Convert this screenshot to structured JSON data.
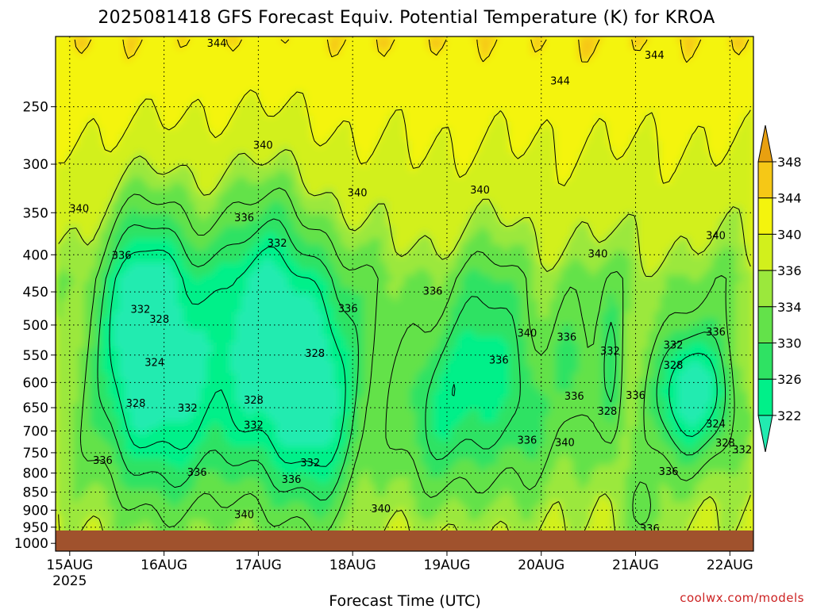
{
  "chart_data": {
    "type": "heatmap",
    "title": "2025081418 GFS Forecast Equiv. Potential Temperature (K) for KROA",
    "xlabel": "Forecast Time (UTC)",
    "ylabel": "",
    "x_ticks": [
      "15AUG",
      "16AUG",
      "17AUG",
      "18AUG",
      "19AUG",
      "20AUG",
      "21AUG",
      "22AUG"
    ],
    "x_tick_year": "2025",
    "x_range_days": [
      -0.15,
      7.25
    ],
    "y_ticks": [
      250,
      300,
      350,
      400,
      450,
      500,
      550,
      600,
      650,
      700,
      750,
      800,
      850,
      900,
      950,
      1000
    ],
    "y_range_hpa": [
      200,
      1025
    ],
    "ground_level_hpa": 960,
    "colorbar": {
      "levels": [
        322,
        326,
        330,
        334,
        336,
        340,
        344,
        348
      ],
      "colors": [
        "#00f089",
        "#2fe263",
        "#63e24a",
        "#9be83c",
        "#d2f01c",
        "#f4f40d",
        "#f6c816",
        "#e8a010"
      ],
      "over_color": "#e8a010",
      "under_color": "#22ebb0"
    },
    "contour_labels": [
      {
        "t": 1.56,
        "p": 204,
        "v": "344"
      },
      {
        "t": 6.2,
        "p": 212,
        "v": "344"
      },
      {
        "t": 5.2,
        "p": 230,
        "v": "344"
      },
      {
        "t": 2.05,
        "p": 282,
        "v": "340"
      },
      {
        "t": 3.05,
        "p": 328,
        "v": "340"
      },
      {
        "t": 4.35,
        "p": 325,
        "v": "340"
      },
      {
        "t": 0.1,
        "p": 345,
        "v": "340"
      },
      {
        "t": 5.6,
        "p": 398,
        "v": "340"
      },
      {
        "t": 6.85,
        "p": 376,
        "v": "340"
      },
      {
        "t": 1.85,
        "p": 355,
        "v": "336"
      },
      {
        "t": 0.55,
        "p": 400,
        "v": "336"
      },
      {
        "t": 2.2,
        "p": 385,
        "v": "332"
      },
      {
        "t": 0.75,
        "p": 475,
        "v": "332"
      },
      {
        "t": 0.95,
        "p": 490,
        "v": "328"
      },
      {
        "t": 3.85,
        "p": 448,
        "v": "336"
      },
      {
        "t": 2.95,
        "p": 474,
        "v": "336"
      },
      {
        "t": 4.55,
        "p": 558,
        "v": "336"
      },
      {
        "t": 0.9,
        "p": 562,
        "v": "324"
      },
      {
        "t": 2.6,
        "p": 546,
        "v": "328"
      },
      {
        "t": 0.7,
        "p": 640,
        "v": "328"
      },
      {
        "t": 1.25,
        "p": 650,
        "v": "332"
      },
      {
        "t": 1.95,
        "p": 634,
        "v": "328"
      },
      {
        "t": 1.95,
        "p": 686,
        "v": "332"
      },
      {
        "t": 0.35,
        "p": 767,
        "v": "336"
      },
      {
        "t": 1.35,
        "p": 797,
        "v": "336"
      },
      {
        "t": 2.35,
        "p": 815,
        "v": "336"
      },
      {
        "t": 2.55,
        "p": 773,
        "v": "332"
      },
      {
        "t": 4.85,
        "p": 720,
        "v": "336"
      },
      {
        "t": 1.85,
        "p": 912,
        "v": "340"
      },
      {
        "t": 3.3,
        "p": 895,
        "v": "340"
      },
      {
        "t": 4.85,
        "p": 512,
        "v": "340"
      },
      {
        "t": 5.25,
        "p": 725,
        "v": "340"
      },
      {
        "t": 5.27,
        "p": 519,
        "v": "336"
      },
      {
        "t": 5.73,
        "p": 542,
        "v": "332"
      },
      {
        "t": 5.35,
        "p": 626,
        "v": "336"
      },
      {
        "t": 5.7,
        "p": 656,
        "v": "328"
      },
      {
        "t": 6.0,
        "p": 624,
        "v": "336"
      },
      {
        "t": 6.4,
        "p": 532,
        "v": "332"
      },
      {
        "t": 6.4,
        "p": 567,
        "v": "328"
      },
      {
        "t": 6.85,
        "p": 510,
        "v": "336"
      },
      {
        "t": 6.85,
        "p": 683,
        "v": "324"
      },
      {
        "t": 6.95,
        "p": 726,
        "v": "328"
      },
      {
        "t": 7.13,
        "p": 742,
        "v": "332"
      },
      {
        "t": 6.35,
        "p": 795,
        "v": "336"
      },
      {
        "t": 6.15,
        "p": 953,
        "v": "336"
      }
    ]
  },
  "credit": "coolwx.com/models"
}
